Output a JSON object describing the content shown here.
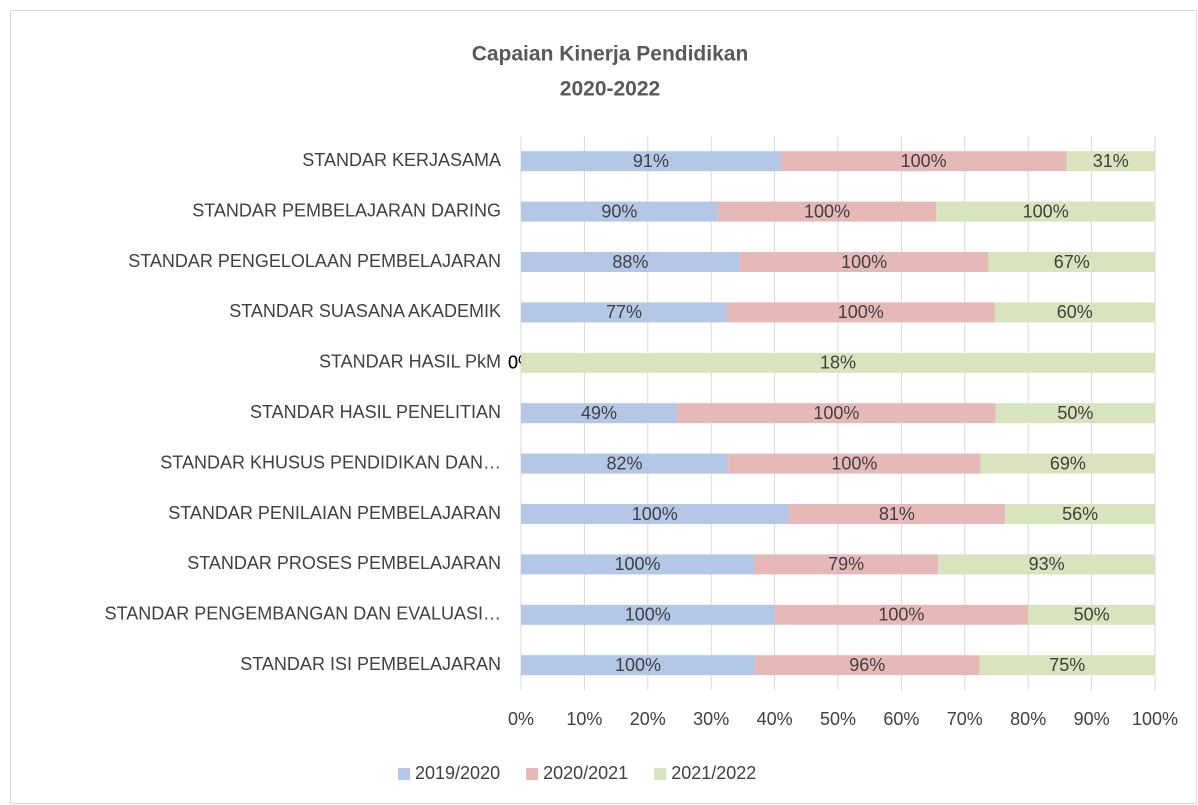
{
  "chart_data": {
    "type": "bar",
    "orientation": "horizontal",
    "stacking": "percent",
    "title": "Capaian Kinerja Pendidikan",
    "subtitle": "2020-2022",
    "categories": [
      "STANDAR KERJASAMA",
      "STANDAR PEMBELAJARAN DARING",
      "STANDAR PENGELOLAAN PEMBELAJARAN",
      "STANDAR SUASANA AKADEMIK",
      "STANDAR HASIL PkM",
      "STANDAR HASIL PENELITIAN",
      "STANDAR KHUSUS PENDIDIKAN DAN…",
      "STANDAR PENILAIAN PEMBELAJARAN",
      "STANDAR PROSES PEMBELAJARAN",
      "STANDAR PENGEMBANGAN DAN EVALUASI…",
      "STANDAR ISI PEMBELAJARAN"
    ],
    "series": [
      {
        "name": "2019/2020",
        "color": "#b4c7e7",
        "values": [
          91,
          90,
          88,
          77,
          0,
          49,
          82,
          100,
          100,
          100,
          100
        ],
        "value_labels": [
          "91%",
          "90%",
          "88%",
          "77%",
          "0%",
          "49%",
          "82%",
          "100%",
          "100%",
          "100%",
          "100%"
        ]
      },
      {
        "name": "2020/2021",
        "color": "#e6b9b8",
        "values": [
          100,
          100,
          100,
          100,
          0,
          100,
          100,
          81,
          79,
          100,
          96
        ],
        "value_labels": [
          "100%",
          "100%",
          "100%",
          "100%",
          "0%",
          "100%",
          "100%",
          "81%",
          "79%",
          "100%",
          "96%"
        ]
      },
      {
        "name": "2021/2022",
        "color": "#d7e4bd",
        "values": [
          31,
          100,
          67,
          60,
          18,
          50,
          69,
          56,
          93,
          50,
          75
        ],
        "value_labels": [
          "31%",
          "100%",
          "67%",
          "60%",
          "18%",
          "50%",
          "69%",
          "56%",
          "93%",
          "50%",
          "75%"
        ]
      }
    ],
    "xlim": [
      0,
      100
    ],
    "xticks": [
      {
        "value": 0,
        "label": "0%"
      },
      {
        "value": 10,
        "label": "10%"
      },
      {
        "value": 20,
        "label": "20%"
      },
      {
        "value": 30,
        "label": "30%"
      },
      {
        "value": 40,
        "label": "40%"
      },
      {
        "value": 50,
        "label": "50%"
      },
      {
        "value": 60,
        "label": "60%"
      },
      {
        "value": 70,
        "label": "70%"
      },
      {
        "value": 80,
        "label": "80%"
      },
      {
        "value": 90,
        "label": "90%"
      },
      {
        "value": 100,
        "label": "100%"
      }
    ],
    "grid": true,
    "legend": "bottom"
  }
}
